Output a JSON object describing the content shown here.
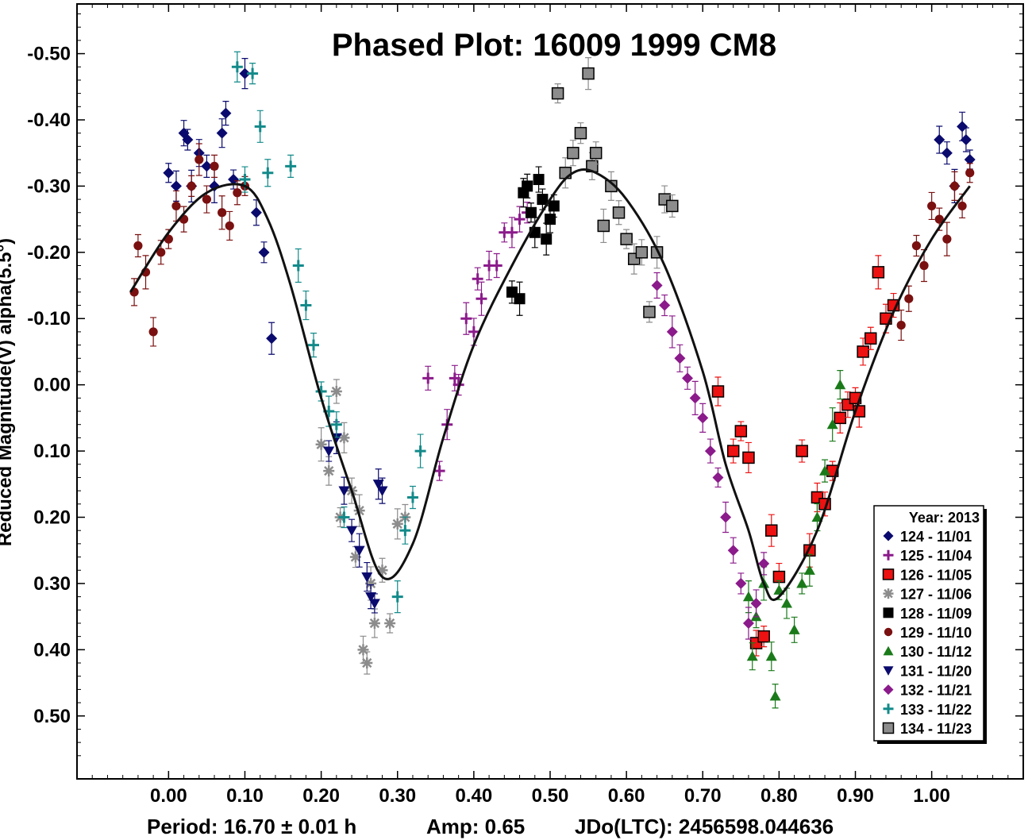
{
  "chart_data": {
    "type": "scatter",
    "title": "Phased Plot: 16009 1999 CM8",
    "xlabel": "",
    "ylabel": "Reduced Magnitude(V) alpha(5.5°)",
    "xlim": [
      -0.12,
      1.12
    ],
    "ylim": [
      -0.575,
      0.595
    ],
    "y_inverted": true,
    "x_ticks": [
      "0.00",
      "0.10",
      "0.20",
      "0.30",
      "0.40",
      "0.50",
      "0.60",
      "0.70",
      "0.80",
      "0.90",
      "1.00"
    ],
    "x_tick_values": [
      0,
      0.1,
      0.2,
      0.3,
      0.4,
      0.5,
      0.6,
      0.7,
      0.8,
      0.9,
      1.0
    ],
    "y_ticks": [
      "-0.50",
      "-0.40",
      "-0.30",
      "-0.20",
      "-0.10",
      "0.00",
      "0.10",
      "0.20",
      "0.30",
      "0.40",
      "0.50"
    ],
    "y_tick_values": [
      -0.5,
      -0.4,
      -0.3,
      -0.2,
      -0.1,
      0,
      0.1,
      0.2,
      0.3,
      0.4,
      0.5
    ],
    "footer": {
      "period": "Period: 16.70 ± 0.01 h",
      "amp": "Amp: 0.65",
      "jdo": "JDo(LTC): 2456598.044636"
    },
    "legend": {
      "title": "Year: 2013",
      "position": "lower-right",
      "entries": [
        {
          "label": "124 - 11/01",
          "marker": "diamond",
          "color": "#0a0a6e"
        },
        {
          "label": "125 - 11/04",
          "marker": "plus",
          "color": "#8b1a8b"
        },
        {
          "label": "126 - 11/05",
          "marker": "square-red",
          "color": "#ee1111"
        },
        {
          "label": "127 - 11/06",
          "marker": "asterisk",
          "color": "#8c8c8c"
        },
        {
          "label": "128 - 11/09",
          "marker": "square-black",
          "color": "#000000"
        },
        {
          "label": "129 - 11/10",
          "marker": "circle",
          "color": "#7a1010"
        },
        {
          "label": "130 - 11/12",
          "marker": "triangle-up",
          "color": "#1a7a1a"
        },
        {
          "label": "131 - 11/20",
          "marker": "triangle-down",
          "color": "#0a0a6e"
        },
        {
          "label": "132 - 11/21",
          "marker": "diamond",
          "color": "#8b1a8b"
        },
        {
          "label": "133 - 11/22",
          "marker": "plus",
          "color": "#138a8a"
        },
        {
          "label": "134 - 11/23",
          "marker": "square-gray",
          "color": "#8c8c8c"
        }
      ]
    },
    "fit_curve": {
      "x": [
        -0.05,
        0.0,
        0.05,
        0.1,
        0.13,
        0.16,
        0.2,
        0.24,
        0.28,
        0.32,
        0.36,
        0.4,
        0.45,
        0.5,
        0.53,
        0.56,
        0.6,
        0.65,
        0.7,
        0.73,
        0.76,
        0.78,
        0.8,
        0.85,
        0.9,
        0.95,
        1.0,
        1.05
      ],
      "y": [
        -0.14,
        -0.23,
        -0.29,
        -0.3,
        -0.25,
        -0.15,
        0.02,
        0.16,
        0.29,
        0.24,
        0.08,
        -0.06,
        -0.18,
        -0.28,
        -0.32,
        -0.32,
        -0.28,
        -0.18,
        -0.02,
        0.12,
        0.22,
        0.3,
        0.32,
        0.22,
        0.04,
        -0.11,
        -0.22,
        -0.3
      ]
    },
    "series": [
      {
        "name": "124 - 11/01",
        "x": [
          0.0,
          0.01,
          0.02,
          0.025,
          0.03,
          0.04,
          0.05,
          0.06,
          0.07,
          0.075,
          0.085,
          0.1,
          0.115,
          0.125,
          0.135,
          1.01,
          1.02,
          1.03,
          1.04,
          1.045,
          1.05
        ],
        "y": [
          -0.32,
          -0.3,
          -0.38,
          -0.37,
          -0.3,
          -0.35,
          -0.33,
          -0.3,
          -0.38,
          -0.41,
          -0.31,
          -0.47,
          -0.26,
          -0.2,
          -0.07,
          -0.37,
          -0.35,
          -0.3,
          -0.39,
          -0.37,
          -0.34
        ]
      },
      {
        "name": "125 - 11/04",
        "x": [
          0.34,
          0.355,
          0.365,
          0.375,
          0.38,
          0.39,
          0.4,
          0.405,
          0.41,
          0.42,
          0.43,
          0.44,
          0.45,
          0.46,
          0.47
        ],
        "y": [
          -0.01,
          0.13,
          0.06,
          -0.01,
          0.0,
          -0.1,
          -0.08,
          -0.16,
          -0.13,
          -0.18,
          -0.18,
          -0.23,
          -0.23,
          -0.25,
          -0.26
        ]
      },
      {
        "name": "126 - 11/05",
        "x": [
          0.72,
          0.74,
          0.75,
          0.76,
          0.77,
          0.78,
          0.79,
          0.8,
          0.83,
          0.84,
          0.85,
          0.86,
          0.87,
          0.88,
          0.89,
          0.9,
          0.905,
          0.91,
          0.92,
          0.93,
          0.94,
          0.95
        ],
        "y": [
          0.01,
          0.1,
          0.07,
          0.11,
          0.39,
          0.38,
          0.22,
          0.29,
          0.1,
          0.25,
          0.17,
          0.18,
          0.13,
          0.05,
          0.03,
          0.02,
          0.04,
          -0.05,
          -0.07,
          -0.17,
          -0.1,
          -0.12
        ]
      },
      {
        "name": "127 - 11/06",
        "x": [
          0.2,
          0.21,
          0.22,
          0.225,
          0.23,
          0.24,
          0.245,
          0.25,
          0.255,
          0.26,
          0.265,
          0.27,
          0.28,
          0.29,
          0.3,
          0.31
        ],
        "y": [
          0.09,
          0.13,
          0.01,
          0.2,
          0.08,
          0.16,
          0.26,
          0.19,
          0.4,
          0.42,
          0.3,
          0.36,
          0.28,
          0.36,
          0.21,
          0.2
        ]
      },
      {
        "name": "128 - 11/09",
        "x": [
          0.45,
          0.46,
          0.465,
          0.47,
          0.475,
          0.48,
          0.485,
          0.49,
          0.495,
          0.5,
          0.505
        ],
        "y": [
          -0.14,
          -0.13,
          -0.29,
          -0.3,
          -0.26,
          -0.23,
          -0.31,
          -0.28,
          -0.22,
          -0.25,
          -0.27
        ]
      },
      {
        "name": "129 - 11/10",
        "x": [
          -0.045,
          -0.04,
          -0.03,
          -0.02,
          -0.01,
          0.0,
          0.01,
          0.02,
          0.03,
          0.04,
          0.05,
          0.06,
          0.07,
          0.08,
          0.09,
          0.1,
          0.96,
          0.97,
          0.98,
          0.99,
          1.0,
          1.01,
          1.02,
          1.03,
          1.04,
          1.05
        ],
        "y": [
          -0.14,
          -0.21,
          -0.17,
          -0.08,
          -0.2,
          -0.22,
          -0.27,
          -0.25,
          -0.3,
          -0.34,
          -0.28,
          -0.33,
          -0.26,
          -0.24,
          -0.29,
          -0.3,
          -0.09,
          -0.13,
          -0.21,
          -0.18,
          -0.27,
          -0.25,
          -0.22,
          -0.3,
          -0.27,
          -0.32
        ]
      },
      {
        "name": "130 - 11/12",
        "x": [
          0.76,
          0.765,
          0.77,
          0.78,
          0.79,
          0.795,
          0.8,
          0.81,
          0.82,
          0.83,
          0.84,
          0.85,
          0.86,
          0.87,
          0.88
        ],
        "y": [
          0.32,
          0.41,
          0.35,
          0.3,
          0.41,
          0.47,
          0.31,
          0.33,
          0.37,
          0.3,
          0.28,
          0.2,
          0.13,
          0.06,
          0.0
        ]
      },
      {
        "name": "131 - 11/20",
        "x": [
          0.21,
          0.22,
          0.23,
          0.24,
          0.25,
          0.26,
          0.265,
          0.27,
          0.275,
          0.28
        ],
        "y": [
          0.1,
          0.08,
          0.16,
          0.22,
          0.25,
          0.29,
          0.32,
          0.33,
          0.15,
          0.16
        ]
      },
      {
        "name": "132 - 11/21",
        "x": [
          0.64,
          0.65,
          0.66,
          0.67,
          0.68,
          0.69,
          0.7,
          0.71,
          0.72,
          0.73,
          0.74,
          0.75,
          0.76,
          0.77,
          0.78
        ],
        "y": [
          -0.15,
          -0.12,
          -0.08,
          -0.04,
          -0.01,
          0.02,
          0.05,
          0.1,
          0.14,
          0.2,
          0.25,
          0.3,
          0.36,
          0.33,
          0.27
        ]
      },
      {
        "name": "133 - 11/22",
        "x": [
          0.09,
          0.1,
          0.11,
          0.12,
          0.13,
          0.16,
          0.17,
          0.18,
          0.19,
          0.2,
          0.21,
          0.22,
          0.23,
          0.3,
          0.31,
          0.32,
          0.33
        ],
        "y": [
          -0.48,
          -0.31,
          -0.47,
          -0.39,
          -0.32,
          -0.33,
          -0.18,
          -0.12,
          -0.06,
          0.01,
          0.04,
          0.06,
          0.2,
          0.32,
          0.22,
          0.17,
          0.1
        ]
      },
      {
        "name": "134 - 11/23",
        "x": [
          0.51,
          0.52,
          0.53,
          0.54,
          0.55,
          0.555,
          0.56,
          0.57,
          0.58,
          0.59,
          0.6,
          0.61,
          0.62,
          0.63,
          0.64,
          0.65,
          0.66
        ],
        "y": [
          -0.44,
          -0.32,
          -0.35,
          -0.38,
          -0.47,
          -0.33,
          -0.35,
          -0.24,
          -0.3,
          -0.26,
          -0.22,
          -0.19,
          -0.2,
          -0.11,
          -0.2,
          -0.28,
          -0.27
        ]
      }
    ]
  }
}
